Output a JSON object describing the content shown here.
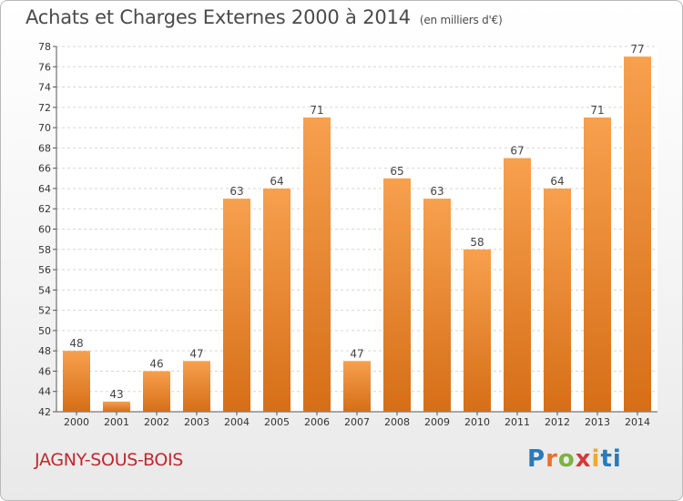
{
  "title": "Achats et Charges Externes 2000 à 2014",
  "unit": "(en milliers d'€)",
  "location": "JAGNY-SOUS-BOIS",
  "brand": [
    "P",
    "r",
    "o",
    "x",
    "i",
    "ti"
  ],
  "colors": {
    "bar_light": "#f7a04e",
    "bar_dark": "#d66e17",
    "city": "#c1272d",
    "grid": "#d6d6d6"
  },
  "chart_data": {
    "type": "bar",
    "categories": [
      "2000",
      "2001",
      "2002",
      "2003",
      "2004",
      "2005",
      "2006",
      "2007",
      "2008",
      "2009",
      "2010",
      "2011",
      "2012",
      "2013",
      "2014"
    ],
    "values": [
      48,
      43,
      46,
      47,
      63,
      64,
      71,
      47,
      65,
      63,
      58,
      67,
      64,
      71,
      77
    ],
    "ylim": [
      42,
      78
    ],
    "ytick_step": 2,
    "grid": true
  }
}
